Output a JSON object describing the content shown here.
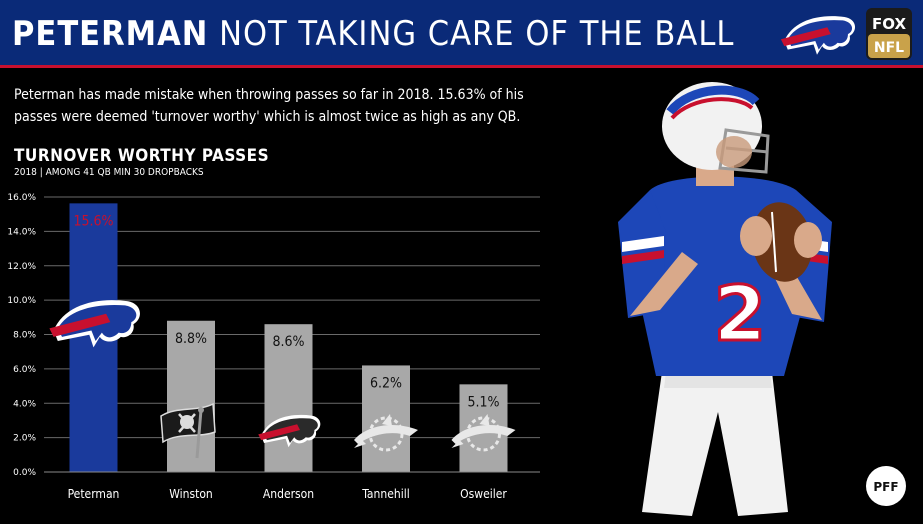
{
  "header": {
    "title_strong": "PETERMAN",
    "title_rest": " NOT TAKING CARE OF THE BALL",
    "badge_top": "FOX",
    "badge_bottom": "NFL"
  },
  "description": "Peterman has made mistake when throwing passes so far in 2018. 15.63% of his passes were deemed 'turnover worthy' which is almost twice as high as any QB.",
  "chart_data": {
    "type": "bar",
    "title": "TURNOVER WORTHY PASSES",
    "subtitle": "2018 | AMONG 41 QB MIN 30 DROPBACKS",
    "categories": [
      "Peterman",
      "Winston",
      "Anderson",
      "Tannehill",
      "Osweiler"
    ],
    "values": [
      15.63,
      8.8,
      8.6,
      6.2,
      5.1
    ],
    "data_labels": [
      "15.6%",
      "8.8%",
      "8.6%",
      "6.2%",
      "5.1%"
    ],
    "yticks": [
      "0.0%",
      "2.0%",
      "4.0%",
      "6.0%",
      "8.0%",
      "10.0%",
      "12.0%",
      "14.0%",
      "16.0%"
    ],
    "ylim": [
      0,
      16
    ],
    "grid": true,
    "xlabel": "",
    "ylabel": "",
    "bar_colors": [
      "#1a3a9c",
      "#a8a8a8",
      "#a8a8a8",
      "#a8a8a8",
      "#a8a8a8"
    ],
    "label_colors": [
      "#c8102e",
      "#111111",
      "#111111",
      "#111111",
      "#111111"
    ],
    "team_icons": [
      "bills-logo-icon",
      "buccaneers-flag-icon",
      "bills-logo-icon",
      "dolphins-logo-icon",
      "dolphins-logo-icon"
    ]
  },
  "player": {
    "jersey_number": "2"
  },
  "footer": {
    "brand": "PFF"
  },
  "colors": {
    "header_bg": "#0a2a78",
    "accent_red": "#c8102e",
    "bills_blue": "#1a3a9c"
  }
}
